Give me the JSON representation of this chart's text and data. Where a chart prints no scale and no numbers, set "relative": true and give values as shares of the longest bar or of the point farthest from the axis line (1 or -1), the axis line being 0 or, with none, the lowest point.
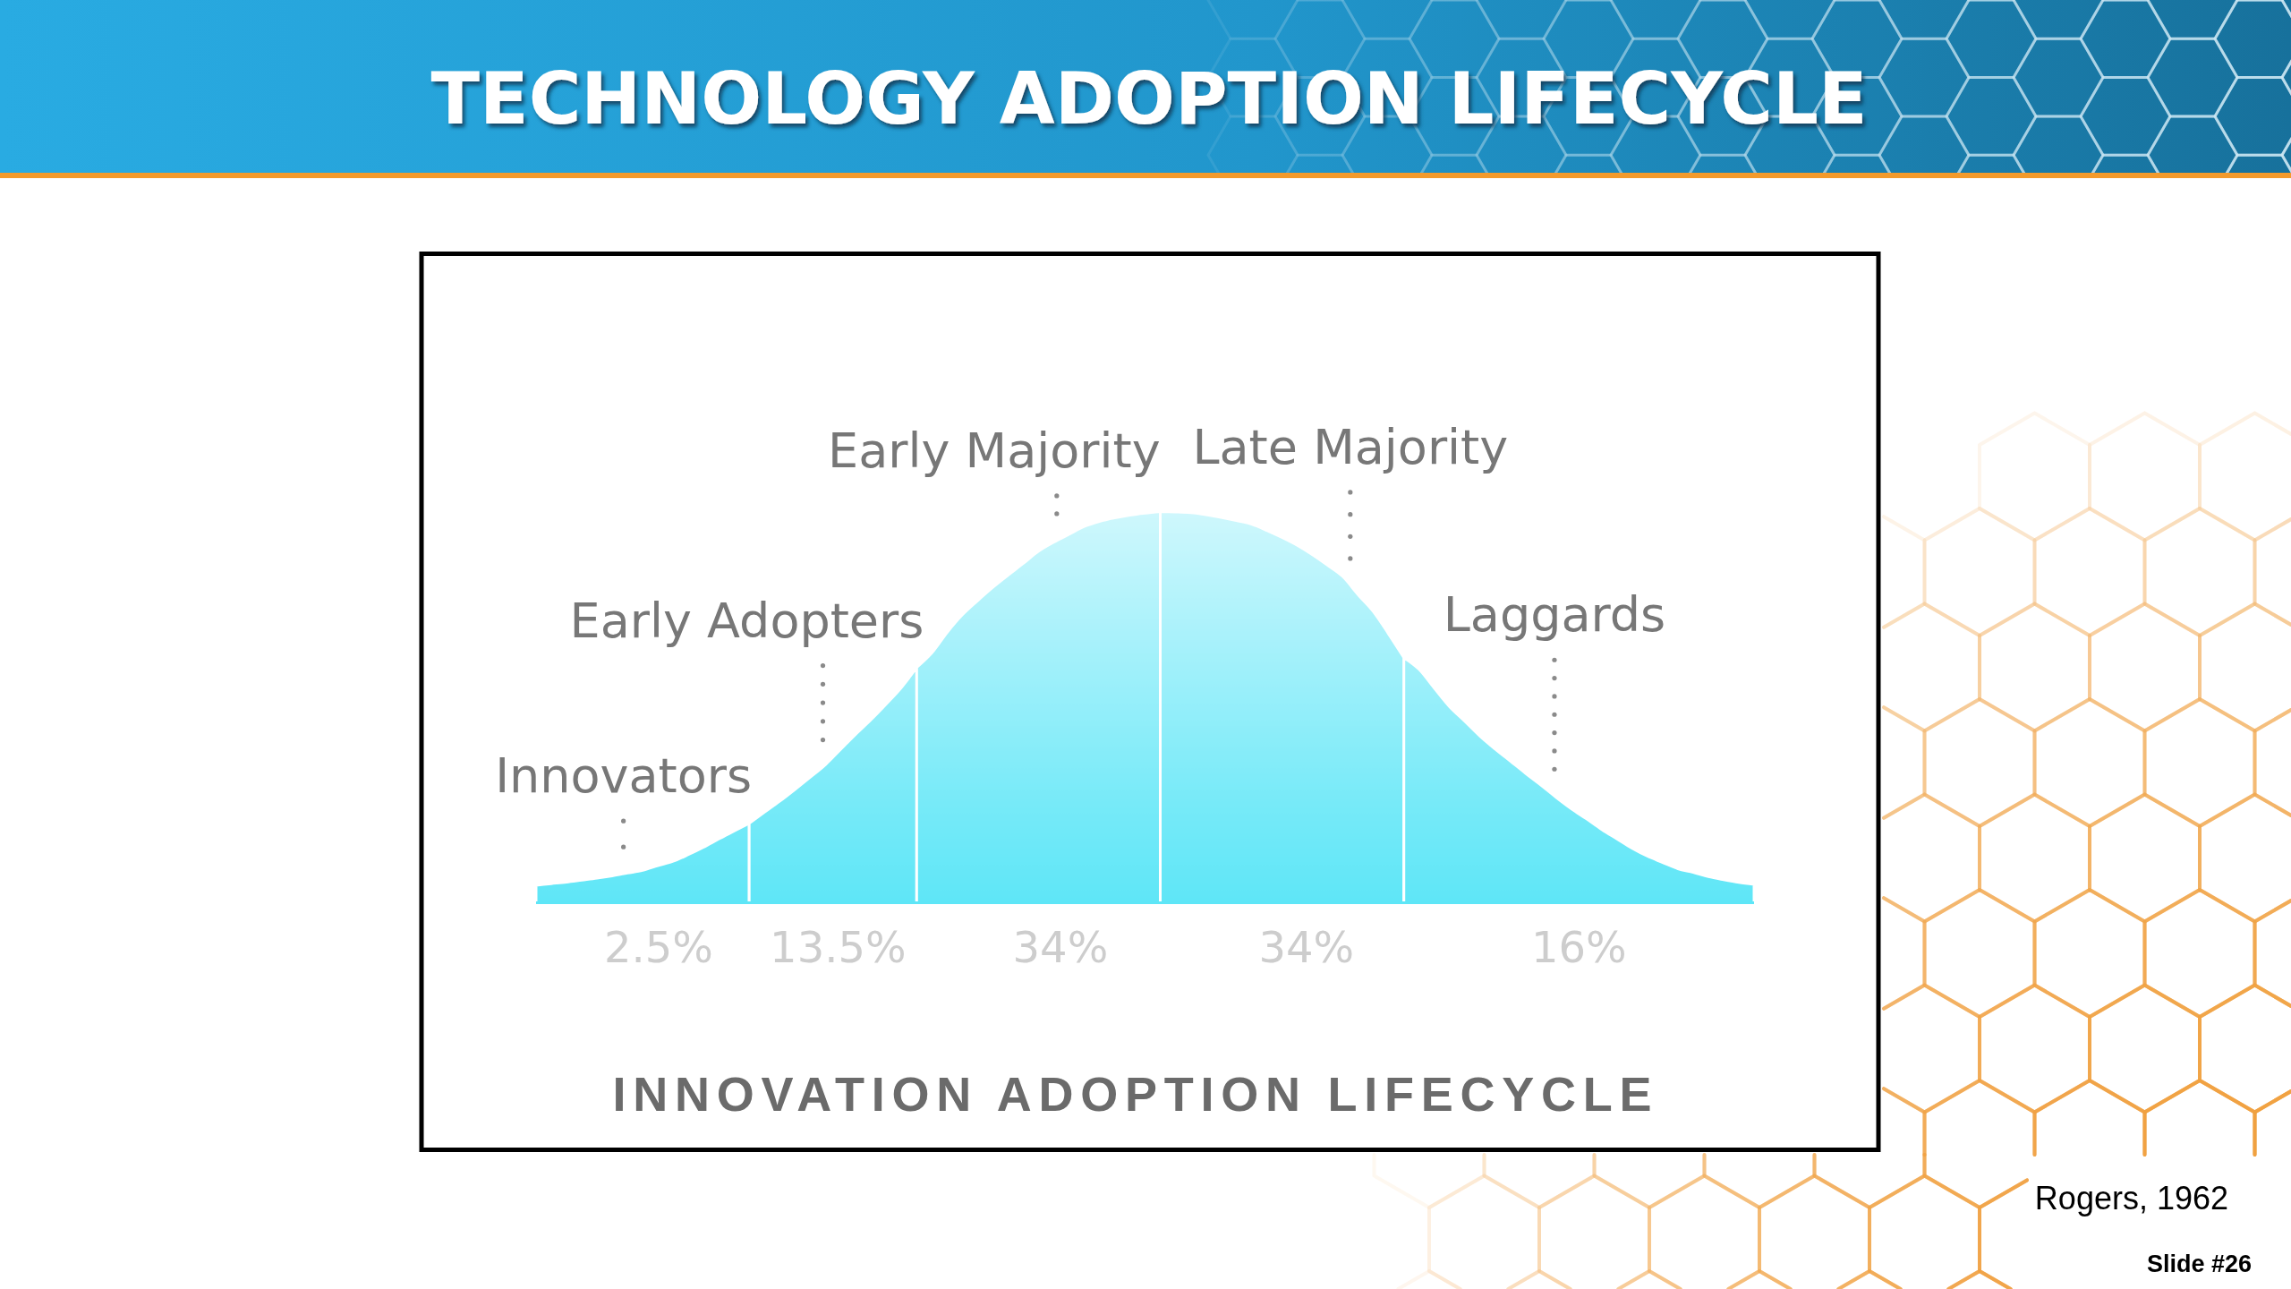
{
  "chart_data": {
    "type": "area",
    "relative": true,
    "title": "TECHNOLOGY ADOPTION LIFECYCLE",
    "subtitle": "INNOVATION ADOPTION LIFECYCLE",
    "categories": [
      null,
      null,
      null,
      null,
      null,
      null,
      null,
      null,
      null,
      null,
      null,
      null,
      null,
      null,
      null,
      null,
      null,
      null,
      null,
      null,
      null,
      null,
      null,
      null,
      null,
      null,
      null,
      null,
      null,
      null,
      null,
      null,
      null,
      null,
      null,
      null,
      null,
      null,
      null,
      null,
      null,
      null,
      null,
      null,
      null,
      null,
      null,
      null,
      null,
      null,
      null,
      null,
      null,
      null,
      null,
      null,
      null,
      null,
      null,
      null,
      null,
      null,
      null,
      null,
      null,
      null,
      null,
      null,
      null,
      null,
      null,
      null,
      null,
      null,
      null,
      null,
      null,
      null,
      null,
      null,
      null
    ],
    "series": [
      {
        "name": "Innovators",
        "color": "#5ee6f7",
        "values": [
          0.048,
          0.052,
          0.056,
          0.061,
          0.066,
          0.072,
          0.079,
          0.086,
          0.098,
          0.109,
          0.126,
          0.145,
          0.166,
          0.186,
          0.206,
          null,
          null,
          null,
          null,
          null,
          null,
          null,
          null,
          null,
          null,
          null,
          null,
          null,
          null,
          null,
          null,
          null,
          null,
          null,
          null,
          null,
          null,
          null,
          null,
          null,
          null,
          null,
          null,
          null,
          null,
          null,
          null,
          null,
          null,
          null,
          null,
          null,
          null,
          null,
          null,
          null,
          null,
          null,
          null,
          null,
          null,
          null,
          null,
          null,
          null,
          null,
          null,
          null,
          null,
          null,
          null,
          null,
          null,
          null,
          null,
          null,
          null,
          null,
          null,
          null,
          null
        ]
      },
      {
        "name": "Early Adopters",
        "color": "#5ee6f7",
        "values": [
          null,
          null,
          null,
          null,
          null,
          null,
          null,
          null,
          null,
          null,
          null,
          null,
          null,
          null,
          0.206,
          0.234,
          0.262,
          0.292,
          0.323,
          0.355,
          0.394,
          0.433,
          0.47,
          0.51,
          0.552,
          0.603,
          null,
          null,
          null,
          null,
          null,
          null,
          null,
          null,
          null,
          null,
          null,
          null,
          null,
          null,
          null,
          null,
          null,
          null,
          null,
          null,
          null,
          null,
          null,
          null,
          null,
          null,
          null,
          null,
          null,
          null,
          null,
          null,
          null,
          null,
          null,
          null,
          null,
          null,
          null,
          null,
          null,
          null,
          null,
          null,
          null,
          null,
          null,
          null,
          null,
          null,
          null,
          null,
          null,
          null,
          null
        ]
      },
      {
        "name": "Early Majority",
        "color": "#5ee6f7",
        "values": [
          null,
          null,
          null,
          null,
          null,
          null,
          null,
          null,
          null,
          null,
          null,
          null,
          null,
          null,
          null,
          null,
          null,
          null,
          null,
          null,
          null,
          null,
          null,
          null,
          null,
          0.603,
          0.64,
          0.692,
          0.737,
          0.773,
          0.807,
          0.838,
          0.868,
          0.899,
          0.922,
          0.942,
          0.962,
          0.975,
          0.984,
          0.991,
          0.996,
          1.0,
          null,
          null,
          null,
          null,
          null,
          null,
          null,
          null,
          null,
          null,
          null,
          null,
          null,
          null,
          null,
          null,
          null,
          null,
          null,
          null,
          null,
          null,
          null,
          null,
          null,
          null,
          null,
          null,
          null,
          null,
          null,
          null,
          null,
          null,
          null,
          null,
          null,
          null,
          null
        ]
      },
      {
        "name": "Late Majority",
        "color": "#5ee6f7",
        "values": [
          null,
          null,
          null,
          null,
          null,
          null,
          null,
          null,
          null,
          null,
          null,
          null,
          null,
          null,
          null,
          null,
          null,
          null,
          null,
          null,
          null,
          null,
          null,
          null,
          null,
          null,
          null,
          null,
          null,
          null,
          null,
          null,
          null,
          null,
          null,
          null,
          null,
          null,
          null,
          null,
          null,
          1.0,
          0.999,
          0.997,
          0.992,
          0.985,
          0.977,
          0.968,
          0.952,
          0.934,
          0.914,
          0.89,
          0.863,
          0.834,
          0.788,
          0.745,
          0.688,
          0.628,
          null,
          null,
          null,
          null,
          null,
          null,
          null,
          null,
          null,
          null,
          null,
          null,
          null,
          null,
          null,
          null,
          null,
          null,
          null,
          null,
          null,
          null,
          null
        ]
      },
      {
        "name": "Laggards",
        "color": "#5ee6f7",
        "values": [
          null,
          null,
          null,
          null,
          null,
          null,
          null,
          null,
          null,
          null,
          null,
          null,
          null,
          null,
          null,
          null,
          null,
          null,
          null,
          null,
          null,
          null,
          null,
          null,
          null,
          null,
          null,
          null,
          null,
          null,
          null,
          null,
          null,
          null,
          null,
          null,
          null,
          null,
          null,
          null,
          null,
          null,
          null,
          null,
          null,
          null,
          null,
          null,
          null,
          null,
          null,
          null,
          null,
          null,
          null,
          null,
          null,
          0.628,
          0.598,
          0.55,
          0.503,
          0.466,
          0.428,
          0.395,
          0.364,
          0.333,
          0.303,
          0.272,
          0.243,
          0.217,
          0.19,
          0.166,
          0.142,
          0.122,
          0.106,
          0.09,
          0.081,
          0.07,
          0.062,
          0.055,
          0.05
        ]
      }
    ],
    "annotations": [
      "2.5%",
      "13.5%",
      "34%",
      "34%",
      "16%",
      "Rogers, 1962",
      "Slide #26"
    ]
  }
}
